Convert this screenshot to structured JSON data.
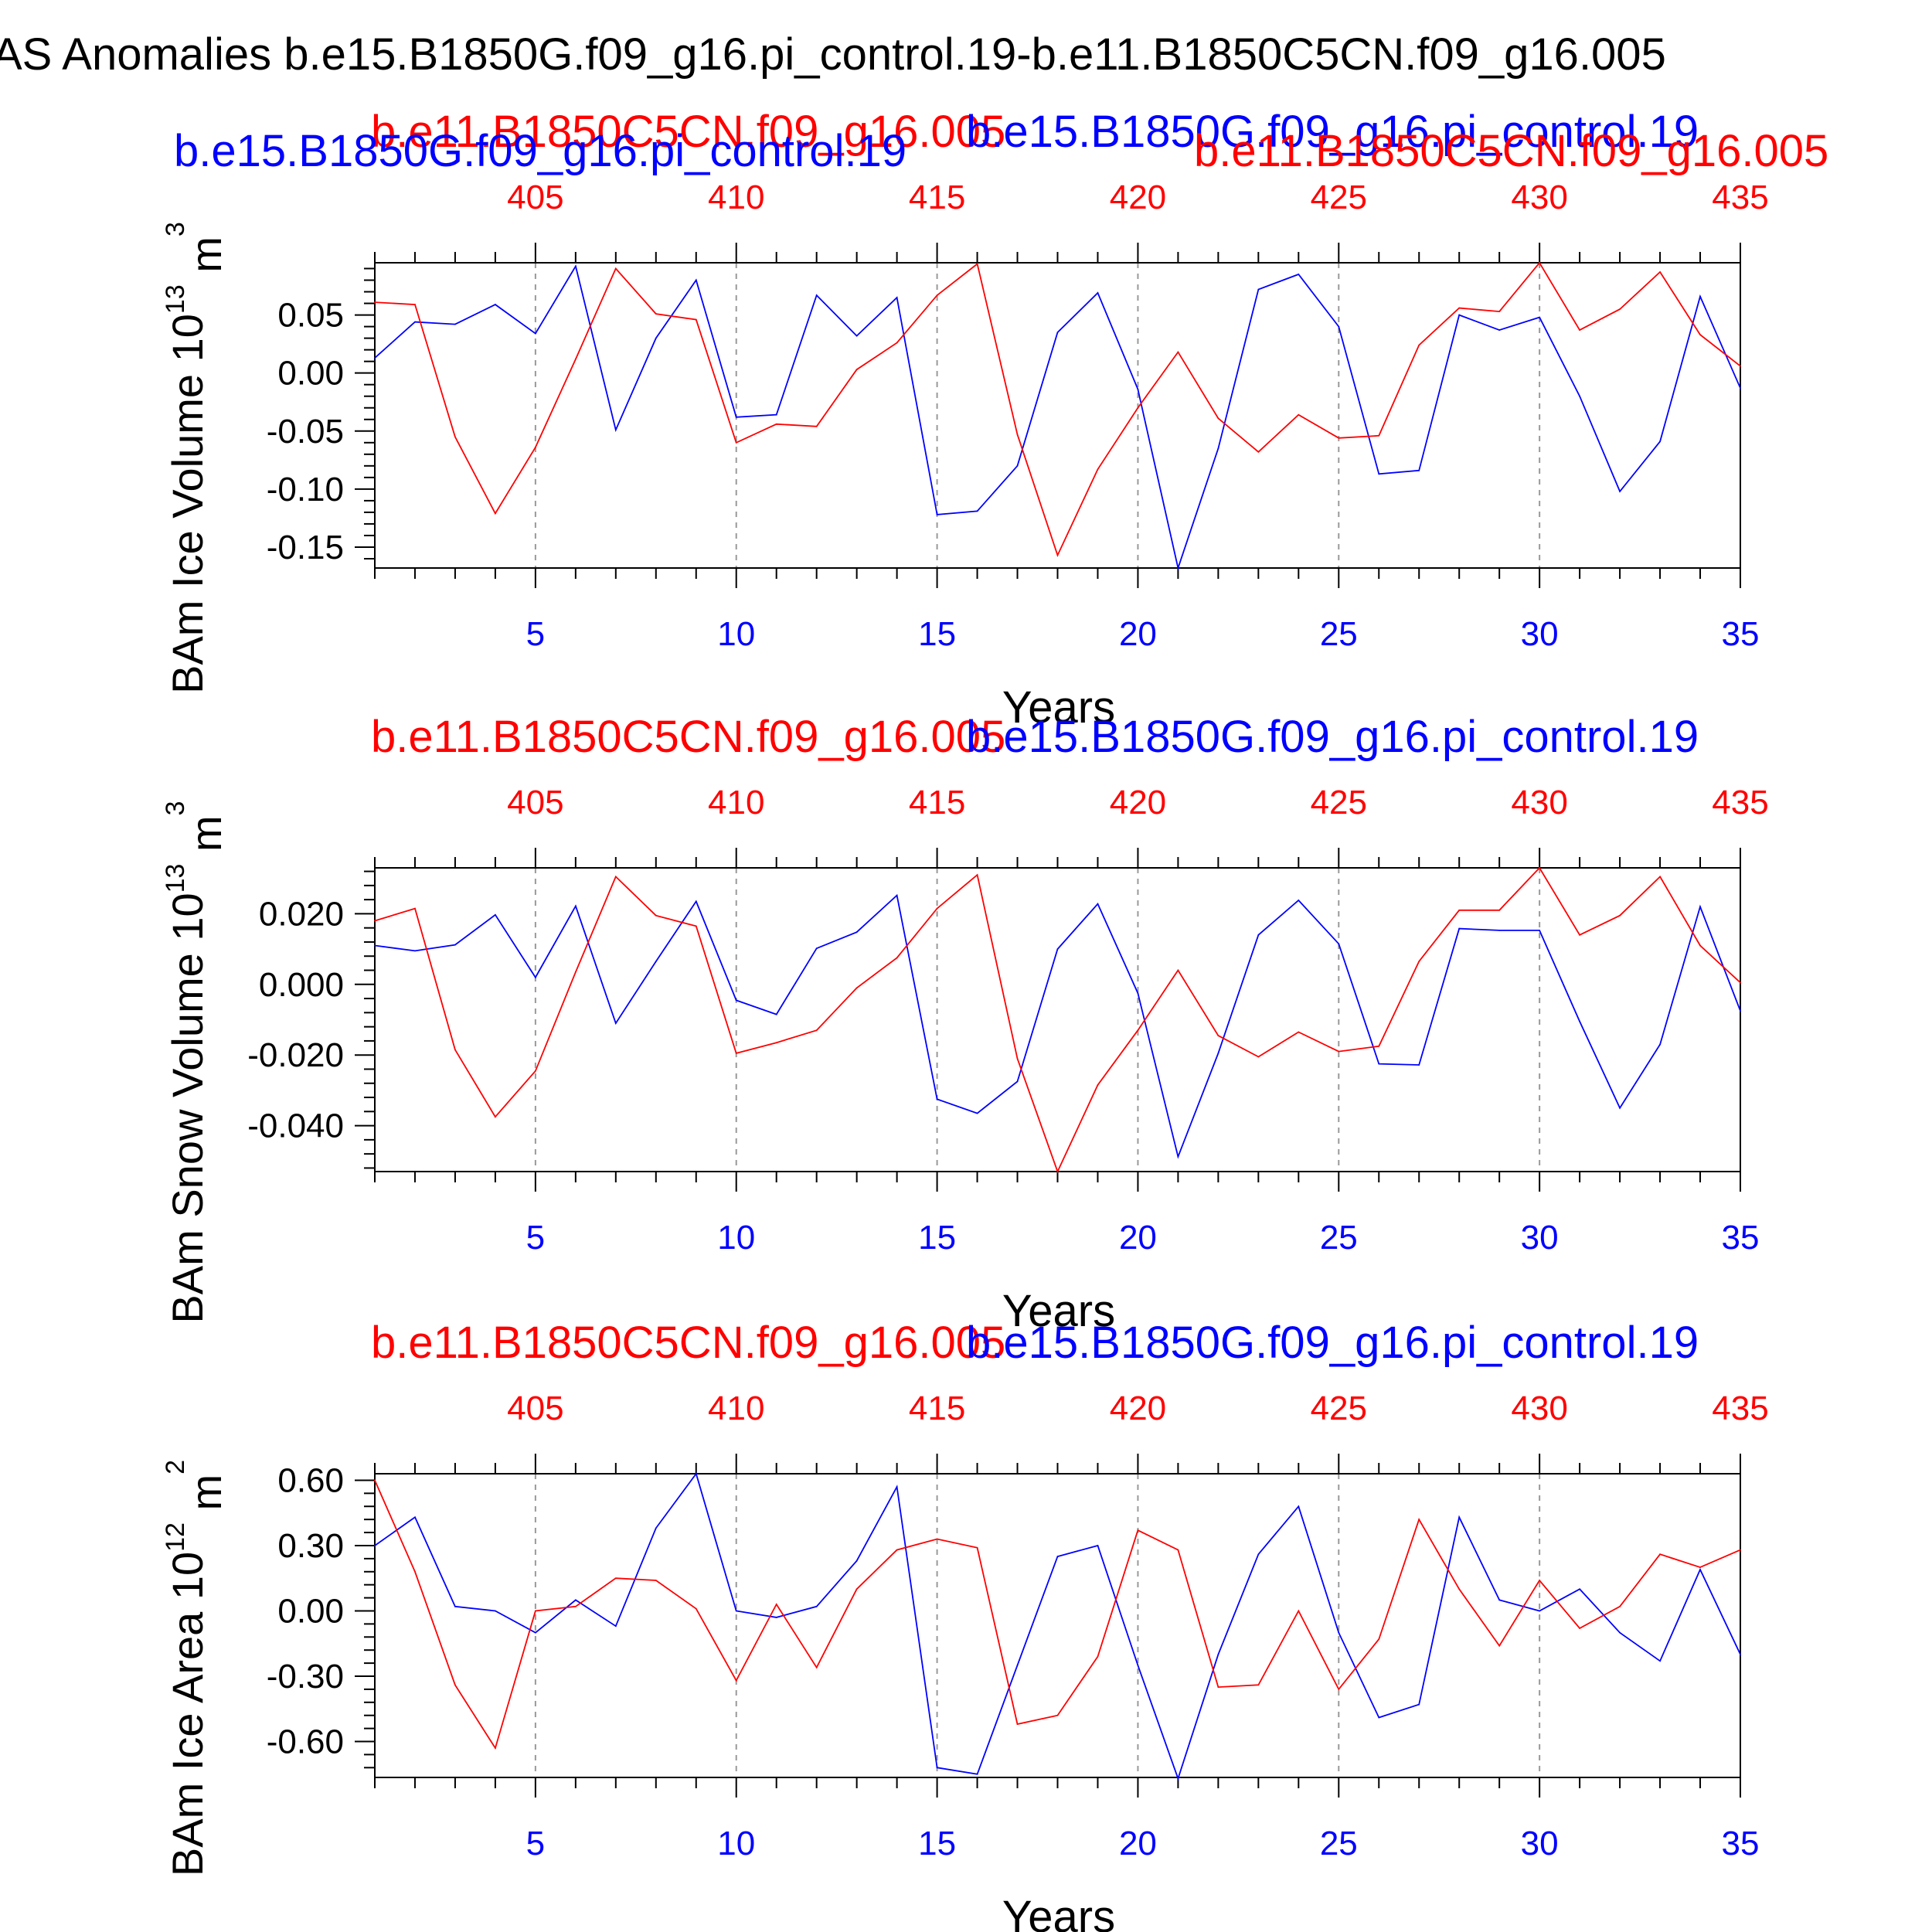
{
  "title": "AS Anomalies b.e15.B1850G.f09_g16.pi_control.19-b.e11.B1850C5CN.f09_g16.005",
  "colors": {
    "case_a": "#0000ff",
    "case_b": "#ff0000",
    "axis": "#000000",
    "grid": "#999999"
  },
  "case_a_label": "b.e15.B1850G.f09_g16.pi_control.19",
  "case_b_label": "b.e11.B1850C5CN.f09_g16.005",
  "chart_data": [
    {
      "type": "line",
      "ylabel": "BAm Ice Volume 10",
      "ylabel_exp": "13",
      "ylabel_unit": " m",
      "ylabel_unit_exp": "3",
      "xlabel": "Years",
      "xlim": [
        1,
        35
      ],
      "ylim": [
        -0.168,
        0.095
      ],
      "yticks": [
        0.05,
        0.0,
        -0.05,
        -0.1,
        -0.15
      ],
      "ytick_labels": [
        "0.05",
        "0.00",
        "-0.05",
        "-0.10",
        "-0.15"
      ],
      "xticks": [
        5,
        10,
        15,
        20,
        25,
        30,
        35
      ],
      "xtick_labels": [
        "5",
        "10",
        "15",
        "20",
        "25",
        "30",
        "35"
      ],
      "top_xticks": [
        5,
        10,
        15,
        20,
        25,
        30,
        35
      ],
      "top_xtick_labels": [
        "405",
        "410",
        "415",
        "420",
        "425",
        "430",
        "435"
      ],
      "case_b_label_extra": "b.e11.B1850C5CN.f09_g16.005",
      "series": [
        {
          "name": "b.e15.B1850G.f09_g16.pi_control.19",
          "color": "#0000ff",
          "x": [
            1,
            2,
            3,
            4,
            5,
            6,
            7,
            8,
            9,
            10,
            11,
            12,
            13,
            14,
            15,
            16,
            17,
            18,
            19,
            20,
            21,
            22,
            23,
            24,
            25,
            26,
            27,
            28,
            29,
            30,
            31,
            32,
            33,
            34,
            35
          ],
          "values": [
            0.013,
            0.044,
            0.042,
            0.059,
            0.034,
            0.092,
            -0.049,
            0.03,
            0.08,
            -0.038,
            -0.036,
            0.067,
            0.032,
            0.065,
            -0.122,
            -0.119,
            -0.08,
            0.035,
            0.069,
            -0.014,
            -0.168,
            -0.065,
            0.072,
            0.085,
            0.04,
            -0.087,
            -0.084,
            0.05,
            0.037,
            0.048,
            -0.02,
            -0.102,
            -0.059,
            0.066,
            -0.013
          ]
        },
        {
          "name": "b.e11.B1850C5CN.f09_g16.005",
          "color": "#ff0000",
          "x": [
            1,
            2,
            3,
            4,
            5,
            6,
            7,
            8,
            9,
            10,
            11,
            12,
            13,
            14,
            15,
            16,
            17,
            18,
            19,
            20,
            21,
            22,
            23,
            24,
            25,
            26,
            27,
            28,
            29,
            30,
            31,
            32,
            33,
            34,
            35
          ],
          "values": [
            0.061,
            0.059,
            -0.055,
            -0.121,
            -0.064,
            0.012,
            0.09,
            0.051,
            0.046,
            -0.06,
            -0.044,
            -0.046,
            0.003,
            0.026,
            0.067,
            0.094,
            -0.053,
            -0.157,
            -0.083,
            -0.03,
            0.018,
            -0.039,
            -0.068,
            -0.036,
            -0.056,
            -0.054,
            0.024,
            0.056,
            0.053,
            0.095,
            0.037,
            0.055,
            0.087,
            0.033,
            0.006
          ]
        }
      ]
    },
    {
      "type": "line",
      "ylabel": "BAm Snow Volume 10",
      "ylabel_exp": "13",
      "ylabel_unit": " m",
      "ylabel_unit_exp": "3",
      "xlabel": "Years",
      "xlim": [
        1,
        35
      ],
      "ylim": [
        -0.053,
        0.033
      ],
      "yticks": [
        0.02,
        0.0,
        -0.02,
        -0.04
      ],
      "ytick_labels": [
        "0.020",
        "0.000",
        "-0.020",
        "-0.040"
      ],
      "xticks": [
        5,
        10,
        15,
        20,
        25,
        30,
        35
      ],
      "xtick_labels": [
        "5",
        "10",
        "15",
        "20",
        "25",
        "30",
        "35"
      ],
      "top_xticks": [
        5,
        10,
        15,
        20,
        25,
        30,
        35
      ],
      "top_xtick_labels": [
        "405",
        "410",
        "415",
        "420",
        "425",
        "430",
        "435"
      ],
      "series": [
        {
          "name": "b.e15.B1850G.f09_g16.pi_control.19",
          "color": "#0000ff",
          "x": [
            1,
            2,
            3,
            4,
            5,
            6,
            7,
            8,
            9,
            10,
            11,
            12,
            13,
            14,
            15,
            16,
            17,
            18,
            19,
            20,
            21,
            22,
            23,
            24,
            25,
            26,
            27,
            28,
            29,
            30,
            31,
            32,
            33,
            34,
            35
          ],
          "values": [
            0.011,
            0.0095,
            0.0112,
            0.0197,
            0.002,
            0.0222,
            -0.011,
            0.0065,
            0.0235,
            -0.0045,
            -0.0085,
            0.0102,
            0.0148,
            0.0252,
            -0.0325,
            -0.0365,
            -0.0275,
            0.01,
            0.0228,
            -0.0025,
            -0.0488,
            -0.0195,
            0.014,
            0.0238,
            0.0115,
            -0.0225,
            -0.0228,
            0.0158,
            0.0153,
            0.0153,
            -0.0105,
            -0.035,
            -0.017,
            0.022,
            -0.0075
          ]
        },
        {
          "name": "b.e11.B1850C5CN.f09_g16.005",
          "color": "#ff0000",
          "x": [
            1,
            2,
            3,
            4,
            5,
            6,
            7,
            8,
            9,
            10,
            11,
            12,
            13,
            14,
            15,
            16,
            17,
            18,
            19,
            20,
            21,
            22,
            23,
            24,
            25,
            26,
            27,
            28,
            29,
            30,
            31,
            32,
            33,
            34,
            35
          ],
          "values": [
            0.018,
            0.0215,
            -0.0185,
            -0.0375,
            -0.0245,
            0.0035,
            0.0305,
            0.0195,
            0.0165,
            -0.0195,
            -0.0165,
            -0.013,
            -0.001,
            0.0075,
            0.0215,
            0.031,
            -0.021,
            -0.053,
            -0.0285,
            -0.013,
            0.004,
            -0.0145,
            -0.0205,
            -0.0135,
            -0.019,
            -0.0175,
            0.0065,
            0.021,
            0.021,
            0.033,
            0.014,
            0.0195,
            0.0305,
            0.011,
            0.0005
          ]
        }
      ]
    },
    {
      "type": "line",
      "ylabel": "BAm Ice Area 10",
      "ylabel_exp": "12",
      "ylabel_unit": " m",
      "ylabel_unit_exp": "2",
      "xlabel": "Years",
      "xlim": [
        1,
        35
      ],
      "ylim": [
        -0.765,
        0.63
      ],
      "yticks": [
        0.6,
        0.3,
        0.0,
        -0.3,
        -0.6
      ],
      "ytick_labels": [
        "0.60",
        "0.30",
        "0.00",
        "-0.30",
        "-0.60"
      ],
      "xticks": [
        5,
        10,
        15,
        20,
        25,
        30,
        35
      ],
      "xtick_labels": [
        "5",
        "10",
        "15",
        "20",
        "25",
        "30",
        "35"
      ],
      "top_xticks": [
        5,
        10,
        15,
        20,
        25,
        30,
        35
      ],
      "top_xtick_labels": [
        "405",
        "410",
        "415",
        "420",
        "425",
        "430",
        "435"
      ],
      "series": [
        {
          "name": "b.e15.B1850G.f09_g16.pi_control.19",
          "color": "#0000ff",
          "x": [
            1,
            2,
            3,
            4,
            5,
            6,
            7,
            8,
            9,
            10,
            11,
            12,
            13,
            14,
            15,
            16,
            17,
            18,
            19,
            20,
            21,
            22,
            23,
            24,
            25,
            26,
            27,
            28,
            29,
            30,
            31,
            32,
            33,
            34,
            35
          ],
          "values": [
            0.3,
            0.43,
            0.02,
            0.0,
            -0.1,
            0.05,
            -0.07,
            0.38,
            0.63,
            0.0,
            -0.03,
            0.02,
            0.23,
            0.57,
            -0.72,
            -0.75,
            -0.25,
            0.25,
            0.3,
            -0.25,
            -0.77,
            -0.2,
            0.26,
            0.48,
            -0.1,
            -0.49,
            -0.43,
            0.43,
            0.05,
            0.0,
            0.1,
            -0.1,
            -0.23,
            0.19,
            -0.2
          ]
        },
        {
          "name": "b.e11.B1850C5CN.f09_g16.005",
          "color": "#ff0000",
          "x": [
            1,
            2,
            3,
            4,
            5,
            6,
            7,
            8,
            9,
            10,
            11,
            12,
            13,
            14,
            15,
            16,
            17,
            18,
            19,
            20,
            21,
            22,
            23,
            24,
            25,
            26,
            27,
            28,
            29,
            30,
            31,
            32,
            33,
            34,
            35
          ],
          "values": [
            0.6,
            0.18,
            -0.34,
            -0.63,
            0.0,
            0.02,
            0.15,
            0.14,
            0.01,
            -0.32,
            0.03,
            -0.26,
            0.1,
            0.28,
            0.33,
            0.29,
            -0.52,
            -0.48,
            -0.21,
            0.37,
            0.28,
            -0.35,
            -0.34,
            0.0,
            -0.36,
            -0.13,
            0.42,
            0.1,
            -0.16,
            0.14,
            -0.08,
            0.02,
            0.26,
            0.2,
            0.28
          ]
        }
      ]
    }
  ]
}
